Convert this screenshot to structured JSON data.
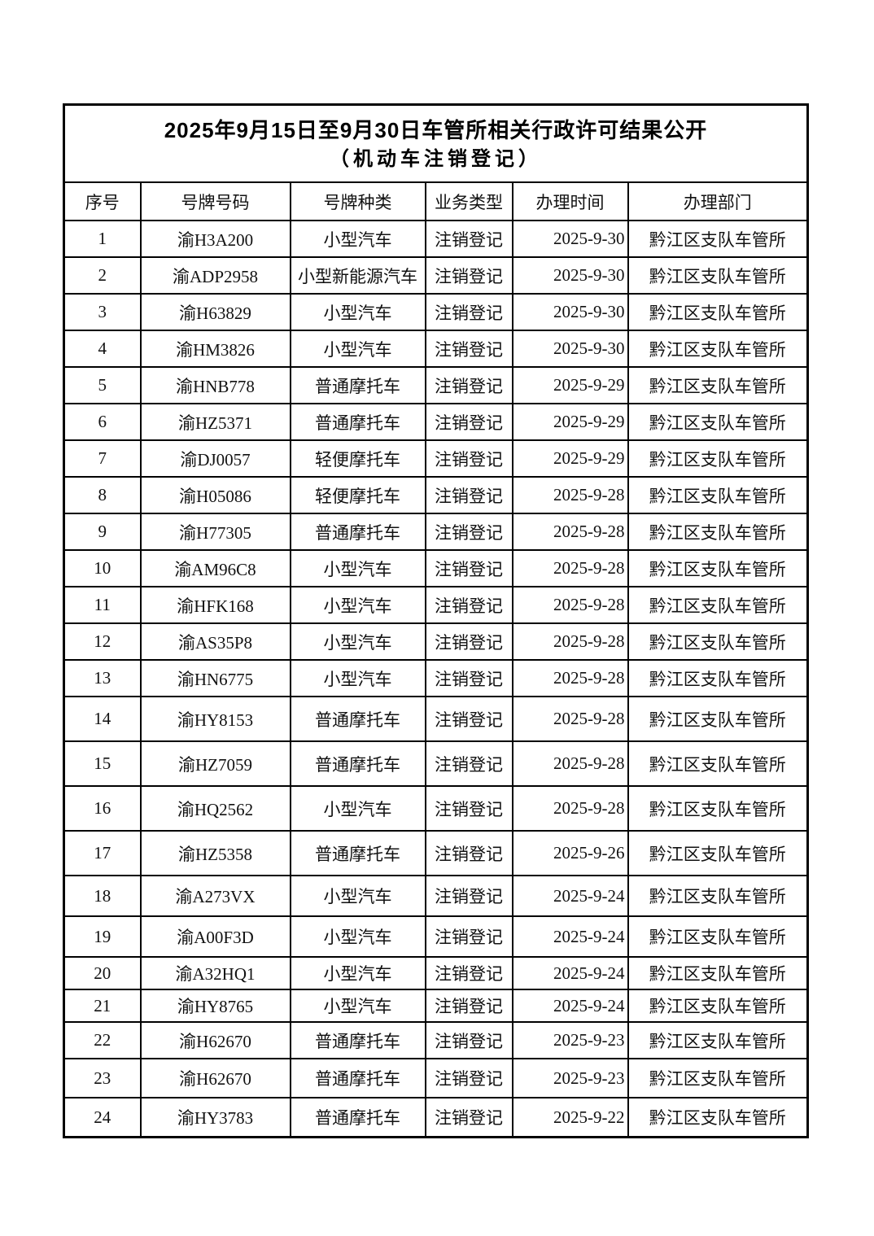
{
  "document": {
    "title_line1": "2025年9月15日至9月30日车管所相关行政许可结果公开",
    "title_line2": "（机动车注销登记）"
  },
  "table": {
    "headers": [
      "序号",
      "号牌号码",
      "号牌种类",
      "业务类型",
      "办理时间",
      "办理部门"
    ],
    "rows": [
      [
        "1",
        "渝H3A200",
        "小型汽车",
        "注销登记",
        "2025-9-30",
        "黔江区支队车管所"
      ],
      [
        "2",
        "渝ADP2958",
        "小型新能源汽车",
        "注销登记",
        "2025-9-30",
        "黔江区支队车管所"
      ],
      [
        "3",
        "渝H63829",
        "小型汽车",
        "注销登记",
        "2025-9-30",
        "黔江区支队车管所"
      ],
      [
        "4",
        "渝HM3826",
        "小型汽车",
        "注销登记",
        "2025-9-30",
        "黔江区支队车管所"
      ],
      [
        "5",
        "渝HNB778",
        "普通摩托车",
        "注销登记",
        "2025-9-29",
        "黔江区支队车管所"
      ],
      [
        "6",
        "渝HZ5371",
        "普通摩托车",
        "注销登记",
        "2025-9-29",
        "黔江区支队车管所"
      ],
      [
        "7",
        "渝DJ0057",
        "轻便摩托车",
        "注销登记",
        "2025-9-29",
        "黔江区支队车管所"
      ],
      [
        "8",
        "渝H05086",
        "轻便摩托车",
        "注销登记",
        "2025-9-28",
        "黔江区支队车管所"
      ],
      [
        "9",
        "渝H77305",
        "普通摩托车",
        "注销登记",
        "2025-9-28",
        "黔江区支队车管所"
      ],
      [
        "10",
        "渝AM96C8",
        "小型汽车",
        "注销登记",
        "2025-9-28",
        "黔江区支队车管所"
      ],
      [
        "11",
        "渝HFK168",
        "小型汽车",
        "注销登记",
        "2025-9-28",
        "黔江区支队车管所"
      ],
      [
        "12",
        "渝AS35P8",
        "小型汽车",
        "注销登记",
        "2025-9-28",
        "黔江区支队车管所"
      ],
      [
        "13",
        "渝HN6775",
        "小型汽车",
        "注销登记",
        "2025-9-28",
        "黔江区支队车管所"
      ],
      [
        "14",
        "渝HY8153",
        "普通摩托车",
        "注销登记",
        "2025-9-28",
        "黔江区支队车管所"
      ],
      [
        "15",
        "渝HZ7059",
        "普通摩托车",
        "注销登记",
        "2025-9-28",
        "黔江区支队车管所"
      ],
      [
        "16",
        "渝HQ2562",
        "小型汽车",
        "注销登记",
        "2025-9-28",
        "黔江区支队车管所"
      ],
      [
        "17",
        "渝HZ5358",
        "普通摩托车",
        "注销登记",
        "2025-9-26",
        "黔江区支队车管所"
      ],
      [
        "18",
        "渝A273VX",
        "小型汽车",
        "注销登记",
        "2025-9-24",
        "黔江区支队车管所"
      ],
      [
        "19",
        "渝A00F3D",
        "小型汽车",
        "注销登记",
        "2025-9-24",
        "黔江区支队车管所"
      ],
      [
        "20",
        "渝A32HQ1",
        "小型汽车",
        "注销登记",
        "2025-9-24",
        "黔江区支队车管所"
      ],
      [
        "21",
        "渝HY8765",
        "小型汽车",
        "注销登记",
        "2025-9-24",
        "黔江区支队车管所"
      ],
      [
        "22",
        "渝H62670",
        "普通摩托车",
        "注销登记",
        "2025-9-23",
        "黔江区支队车管所"
      ],
      [
        "23",
        "渝H62670",
        "普通摩托车",
        "注销登记",
        "2025-9-23",
        "黔江区支队车管所"
      ],
      [
        "24",
        "渝HY3783",
        "普通摩托车",
        "注销登记",
        "2025-9-22",
        "黔江区支队车管所"
      ]
    ]
  },
  "colors": {
    "background": "#ffffff",
    "text": "#111111",
    "border": "#000000"
  }
}
